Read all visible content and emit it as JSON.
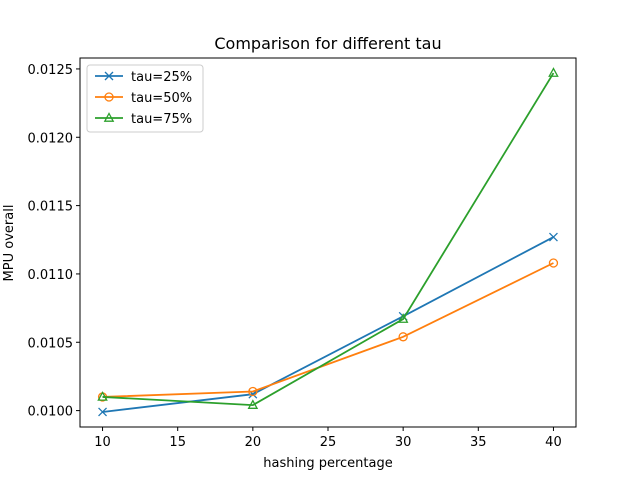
{
  "chart_data": {
    "type": "line",
    "title": "Comparison for different tau",
    "xlabel": "hashing percentage",
    "ylabel": "MPU overall",
    "x": [
      10,
      20,
      30,
      40
    ],
    "xlim": [
      8.5,
      41.5
    ],
    "ylim": [
      0.00988,
      0.01258
    ],
    "xticks": [
      10,
      15,
      20,
      25,
      30,
      35,
      40
    ],
    "xtick_labels": [
      "10",
      "15",
      "20",
      "25",
      "30",
      "35",
      "40"
    ],
    "yticks": [
      0.01,
      0.0105,
      0.011,
      0.0115,
      0.012,
      0.0125
    ],
    "ytick_labels": [
      "0.0100",
      "0.0105",
      "0.0110",
      "0.0115",
      "0.0120",
      "0.0125"
    ],
    "grid": false,
    "legend_position": "top-left",
    "series": [
      {
        "name": "tau=25%",
        "color": "#1f77b4",
        "marker": "x",
        "values": [
          0.00999,
          0.01012,
          0.01069,
          0.01127
        ]
      },
      {
        "name": "tau=50%",
        "color": "#ff7f0e",
        "marker": "circle",
        "values": [
          0.0101,
          0.01014,
          0.01054,
          0.01108
        ]
      },
      {
        "name": "tau=75%",
        "color": "#2ca02c",
        "marker": "triangle",
        "values": [
          0.0101,
          0.01004,
          0.01067,
          0.01247
        ]
      }
    ]
  }
}
